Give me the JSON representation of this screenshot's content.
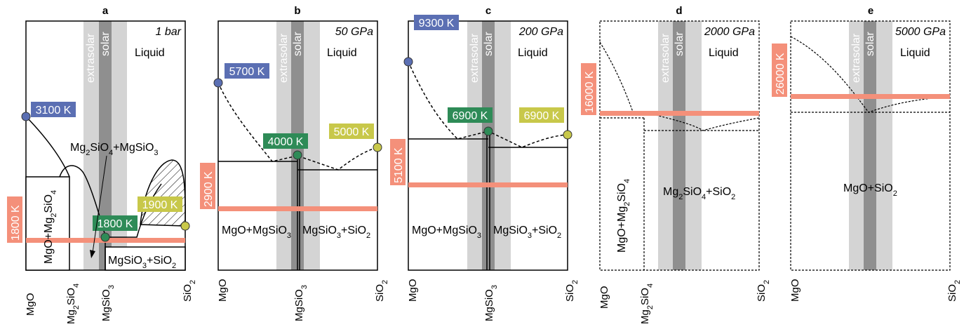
{
  "panels": [
    {
      "title": "a",
      "pressure": "1 bar",
      "liquid": "Liquid",
      "band_labels": [
        "extrasolar",
        "solar"
      ],
      "temps": [
        {
          "text": "3100 K",
          "color": "#5b6fb3"
        },
        {
          "text": "1800 K",
          "color": "#2e8b57"
        },
        {
          "text": "1900 K",
          "color": "#c8c84a"
        },
        {
          "text": "1800 K",
          "color": "#f4907a"
        }
      ],
      "phases": [
        "MgO+Mg2SiO4",
        "Mg2SiO4+MgSiO3",
        "MgSiO3+SiO2"
      ],
      "axis": [
        "MgO",
        "Mg2SiO4",
        "MgSiO3",
        "SiO2"
      ]
    },
    {
      "title": "b",
      "pressure": "50 GPa",
      "liquid": "Liquid",
      "band_labels": [
        "extrasolar",
        "solar"
      ],
      "temps": [
        {
          "text": "5700 K",
          "color": "#5b6fb3"
        },
        {
          "text": "4000 K",
          "color": "#2e8b57"
        },
        {
          "text": "5000 K",
          "color": "#c8c84a"
        },
        {
          "text": "2900 K",
          "color": "#f4907a"
        }
      ],
      "phases": [
        "MgO+MgSiO3",
        "MgSiO3+SiO2"
      ],
      "axis": [
        "MgO",
        "MgSiO3",
        "SiO2"
      ]
    },
    {
      "title": "c",
      "pressure": "200 GPa",
      "liquid": "Liquid",
      "band_labels": [
        "extrasolar",
        "solar"
      ],
      "temps": [
        {
          "text": "9300 K",
          "color": "#5b6fb3"
        },
        {
          "text": "6900 K",
          "color": "#2e8b57"
        },
        {
          "text": "6900 K",
          "color": "#c8c84a"
        },
        {
          "text": "5100 K",
          "color": "#f4907a"
        }
      ],
      "phases": [
        "MgO+MgSiO3",
        "MgSiO3+SiO2"
      ],
      "axis": [
        "MgO",
        "MgSiO3",
        "SiO2"
      ]
    },
    {
      "title": "d",
      "pressure": "2000 GPa",
      "liquid": "Liquid",
      "band_labels": [
        "extrasolar",
        "solar"
      ],
      "temps": [
        {
          "text": "16000 K",
          "color": "#f4907a"
        }
      ],
      "phases": [
        "MgO+Mg2SiO4",
        "Mg2SiO4+SiO2"
      ],
      "axis": [
        "MgO",
        "Mg2SiO4",
        "SiO2"
      ]
    },
    {
      "title": "e",
      "pressure": "5000 GPa",
      "liquid": "Liquid",
      "band_labels": [
        "extrasolar",
        "solar"
      ],
      "temps": [
        {
          "text": "26000 K",
          "color": "#f4907a"
        }
      ],
      "phases": [
        "MgO+SiO2"
      ],
      "axis": [
        "MgO",
        "SiO2"
      ]
    }
  ]
}
